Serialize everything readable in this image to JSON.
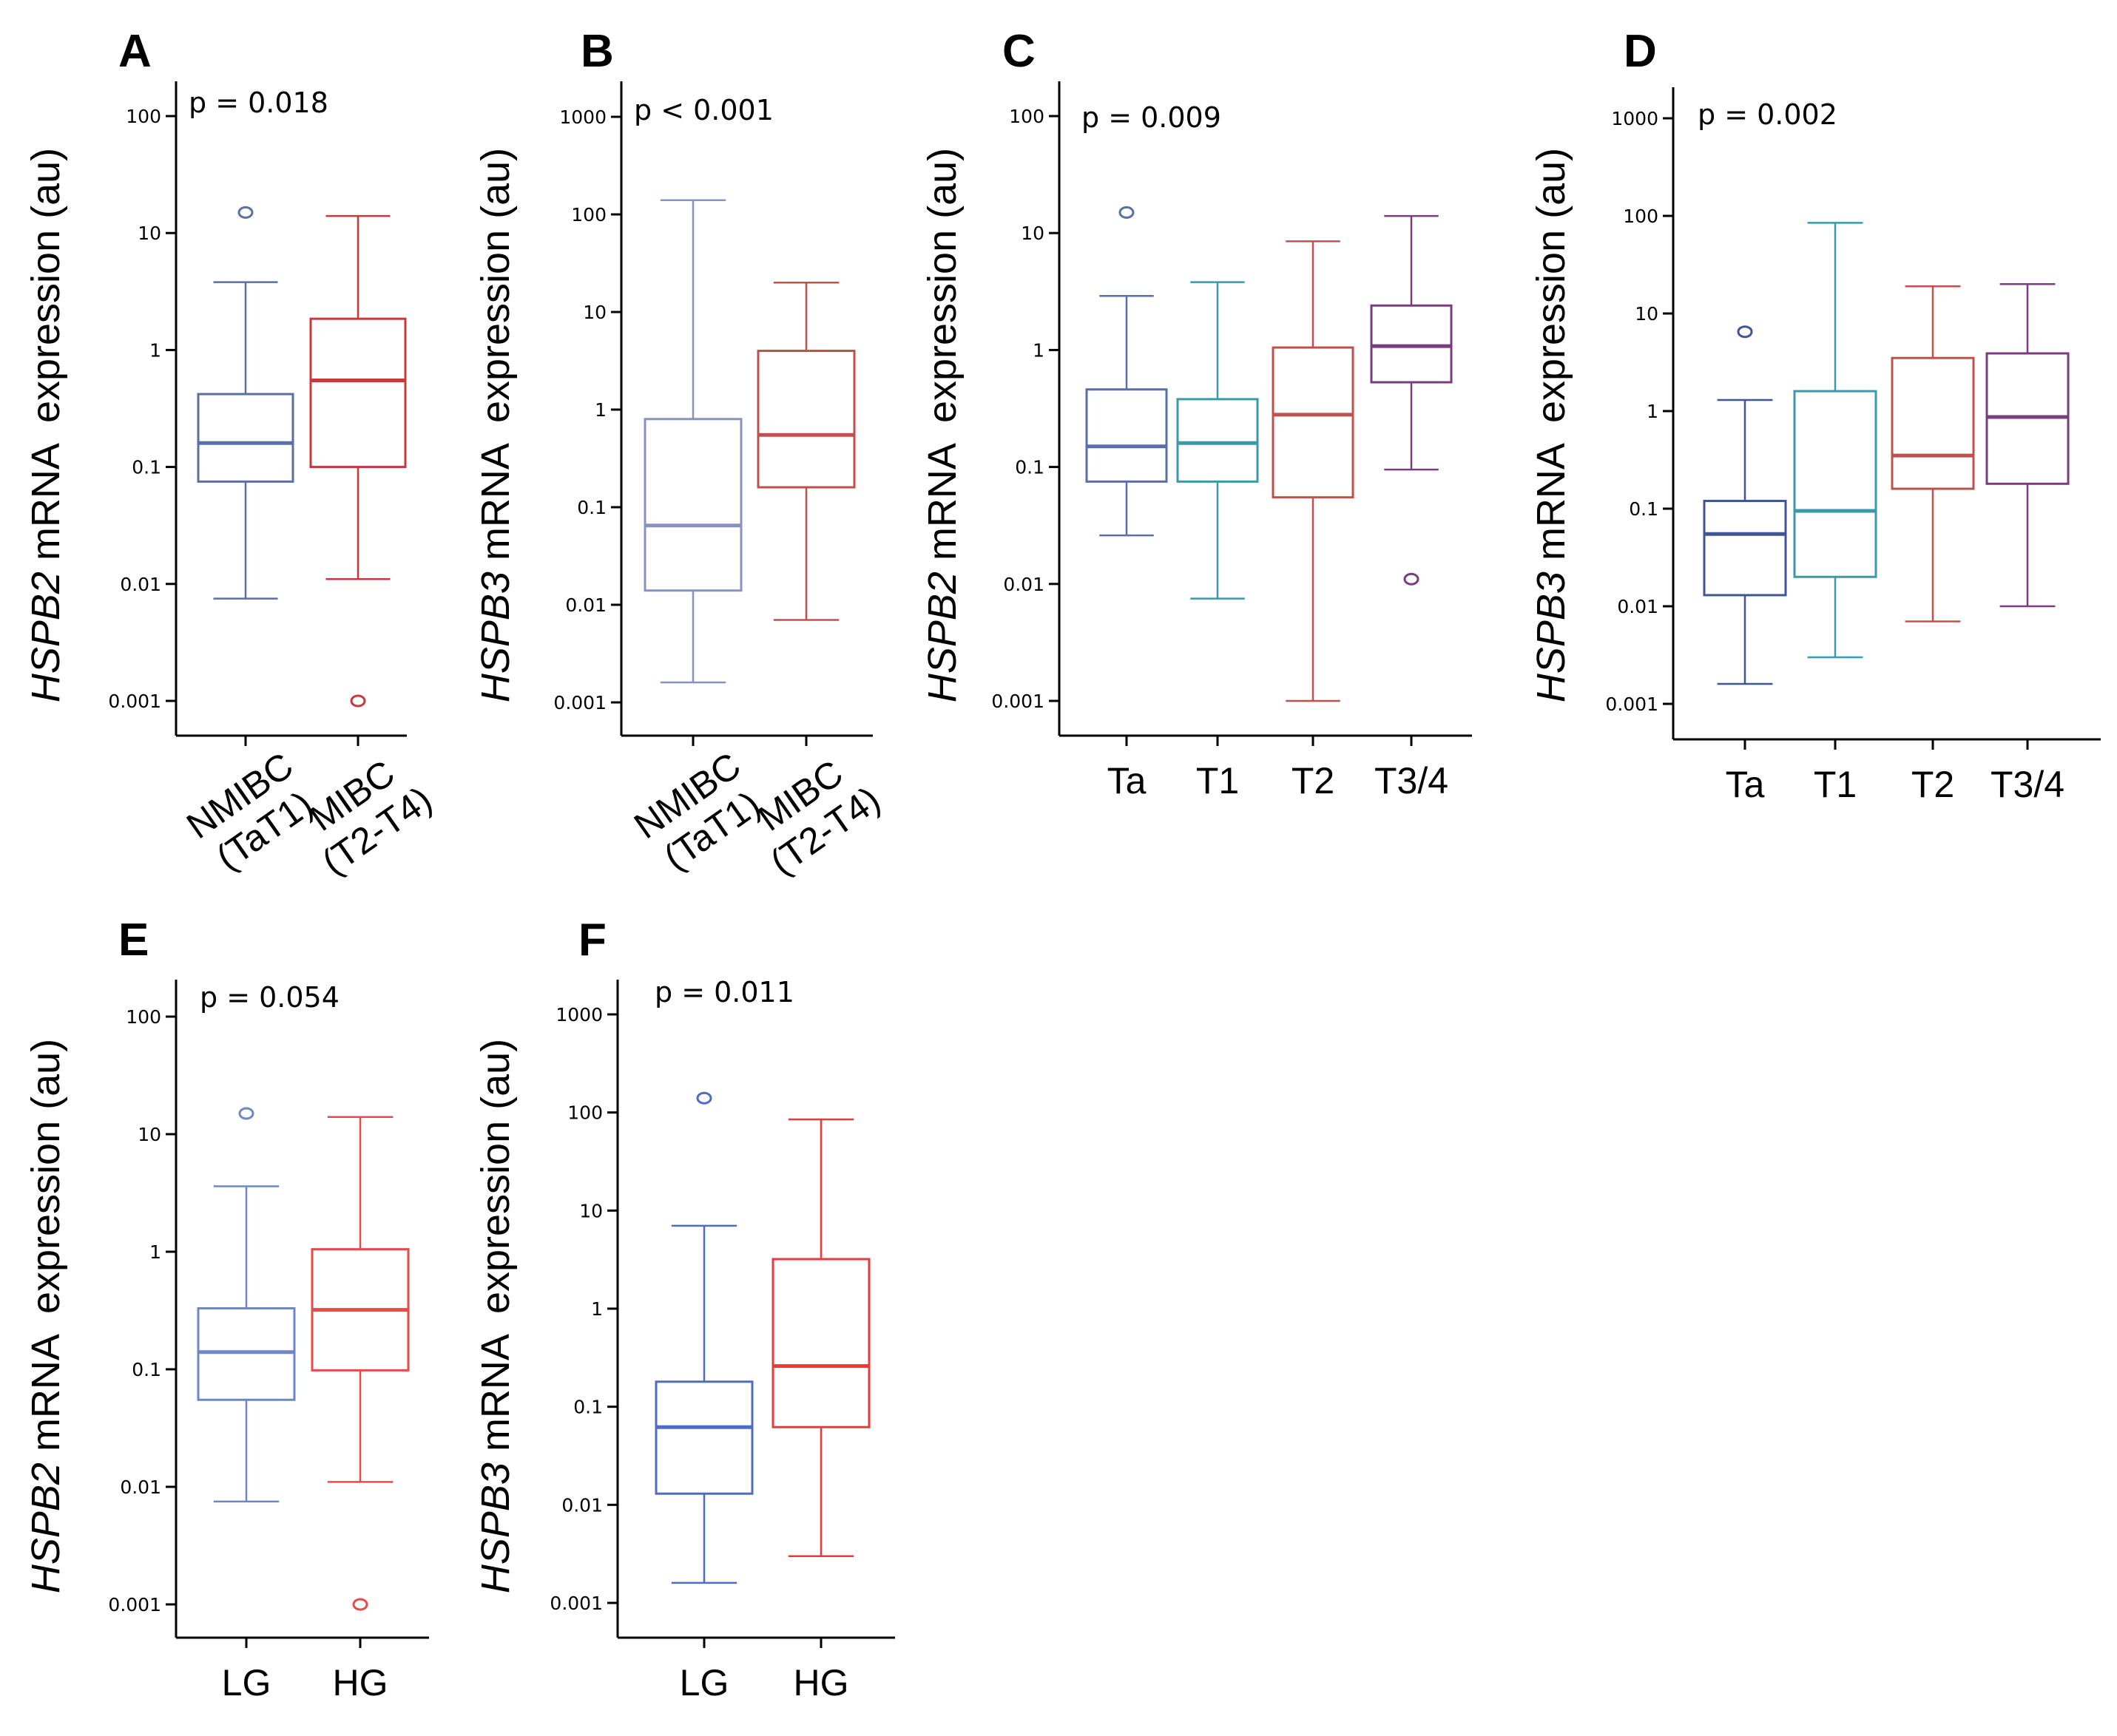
{
  "chart_data": [
    {
      "id": "A",
      "type": "boxplot",
      "panel_label": "A",
      "pvalue": "p = 0.018",
      "ylabel_gene": "HSPB2",
      "ylabel_rest": " mRNA  expression (au)",
      "yscale": "log",
      "ylim": [
        0.0005,
        200
      ],
      "yticks": [
        {
          "v": 0.001,
          "label": "0.001"
        },
        {
          "v": 0.01,
          "label": "0.01"
        },
        {
          "v": 0.1,
          "label": "0.1"
        },
        {
          "v": 1,
          "label": "1"
        },
        {
          "v": 10,
          "label": "10"
        },
        {
          "v": 100,
          "label": "100"
        }
      ],
      "categories": [
        "NMIBC\n(TaT1)",
        "MIBC\n(T2-T4)"
      ],
      "rotated_labels": true,
      "boxes": [
        {
          "name": "NMIBC (TaT1)",
          "whisker_low": 0.0075,
          "q1": 0.075,
          "median": 0.16,
          "q3": 0.42,
          "whisker_high": 3.8,
          "outliers": [
            15
          ],
          "color": "#5a6fa8"
        },
        {
          "name": "MIBC (T2-T4)",
          "whisker_low": 0.011,
          "q1": 0.1,
          "median": 0.55,
          "q3": 1.85,
          "whisker_high": 14,
          "outliers": [
            0.001
          ],
          "color": "#c8383a"
        }
      ]
    },
    {
      "id": "B",
      "type": "boxplot",
      "panel_label": "B",
      "pvalue": "p < 0.001",
      "ylabel_gene": "HSPB3",
      "ylabel_rest": " mRNA  expression (au)",
      "yscale": "log",
      "ylim": [
        0.0006,
        2000
      ],
      "yticks": [
        {
          "v": 0.001,
          "label": "0.001"
        },
        {
          "v": 0.01,
          "label": "0.01"
        },
        {
          "v": 0.1,
          "label": "0.1"
        },
        {
          "v": 1,
          "label": "1"
        },
        {
          "v": 10,
          "label": "10"
        },
        {
          "v": 100,
          "label": "100"
        },
        {
          "v": 1000,
          "label": "1000"
        }
      ],
      "categories": [
        "NMIBC\n(TaT1)",
        "MIBC\n(T2-T4)"
      ],
      "rotated_labels": true,
      "boxes": [
        {
          "name": "NMIBC (TaT1)",
          "whisker_low": 0.0016,
          "q1": 0.014,
          "median": 0.065,
          "q3": 0.8,
          "whisker_high": 140,
          "outliers": [],
          "color": "#8793be"
        },
        {
          "name": "MIBC (T2-T4)",
          "whisker_low": 0.007,
          "q1": 0.16,
          "median": 0.55,
          "q3": 4,
          "whisker_high": 20,
          "outliers": [],
          "color": "#c0504d"
        }
      ]
    },
    {
      "id": "C",
      "type": "boxplot",
      "panel_label": "C",
      "pvalue": "p = 0.009",
      "ylabel_gene": "HSPB2",
      "ylabel_rest": " mRNA  expression (au)",
      "yscale": "log",
      "ylim": [
        0.0005,
        200
      ],
      "yticks": [
        {
          "v": 0.001,
          "label": "0.001"
        },
        {
          "v": 0.01,
          "label": "0.01"
        },
        {
          "v": 0.1,
          "label": "0.1"
        },
        {
          "v": 1,
          "label": "1"
        },
        {
          "v": 10,
          "label": "10"
        },
        {
          "v": 100,
          "label": "100"
        }
      ],
      "categories": [
        "Ta",
        "T1",
        "T2",
        "T3/4"
      ],
      "rotated_labels": false,
      "boxes": [
        {
          "name": "Ta",
          "whisker_low": 0.026,
          "q1": 0.075,
          "median": 0.15,
          "q3": 0.46,
          "whisker_high": 2.9,
          "outliers": [
            15
          ],
          "color": "#5a6fa8"
        },
        {
          "name": "T1",
          "whisker_low": 0.0075,
          "q1": 0.075,
          "median": 0.16,
          "q3": 0.38,
          "whisker_high": 3.8,
          "outliers": [],
          "color": "#3b9aa8"
        },
        {
          "name": "T2",
          "whisker_low": 0.001,
          "q1": 0.055,
          "median": 0.28,
          "q3": 1.05,
          "whisker_high": 8.5,
          "outliers": [],
          "color": "#c0504d"
        },
        {
          "name": "T3/4",
          "whisker_low": 0.095,
          "q1": 0.53,
          "median": 1.08,
          "q3": 2.4,
          "whisker_high": 14,
          "outliers": [
            0.011
          ],
          "color": "#7a3c7c"
        }
      ]
    },
    {
      "id": "D",
      "type": "boxplot",
      "panel_label": "D",
      "pvalue": "p = 0.002",
      "ylabel_gene": "HSPB3",
      "ylabel_rest": " mRNA  expression (au)",
      "yscale": "log",
      "ylim": [
        0.0006,
        2000
      ],
      "yticks": [
        {
          "v": 0.001,
          "label": "0.001"
        },
        {
          "v": 0.01,
          "label": "0.01"
        },
        {
          "v": 0.1,
          "label": "0.1"
        },
        {
          "v": 1,
          "label": "1"
        },
        {
          "v": 10,
          "label": "10"
        },
        {
          "v": 100,
          "label": "100"
        },
        {
          "v": 1000,
          "label": "1000"
        }
      ],
      "categories": [
        "Ta",
        "T1",
        "T2",
        "T3/4"
      ],
      "rotated_labels": false,
      "boxes": [
        {
          "name": "Ta",
          "whisker_low": 0.0016,
          "q1": 0.013,
          "median": 0.055,
          "q3": 0.12,
          "whisker_high": 1.3,
          "outliers": [
            6.5
          ],
          "color": "#3f5594"
        },
        {
          "name": "T1",
          "whisker_low": 0.003,
          "q1": 0.02,
          "median": 0.095,
          "q3": 1.6,
          "whisker_high": 85,
          "outliers": [],
          "color": "#3b9aa8"
        },
        {
          "name": "T2",
          "whisker_low": 0.007,
          "q1": 0.16,
          "median": 0.35,
          "q3": 3.5,
          "whisker_high": 19,
          "outliers": [],
          "color": "#c0504d"
        },
        {
          "name": "T3/4",
          "whisker_low": 0.01,
          "q1": 0.18,
          "median": 0.87,
          "q3": 3.9,
          "whisker_high": 20,
          "outliers": [],
          "color": "#7a3c7c"
        }
      ]
    },
    {
      "id": "E",
      "type": "boxplot",
      "panel_label": "E",
      "pvalue": "p = 0.054",
      "ylabel_gene": "HSPB2",
      "ylabel_rest": " mRNA  expression (au)",
      "yscale": "log",
      "ylim": [
        0.0005,
        200
      ],
      "yticks": [
        {
          "v": 0.001,
          "label": "0.001"
        },
        {
          "v": 0.01,
          "label": "0.01"
        },
        {
          "v": 0.1,
          "label": "0.1"
        },
        {
          "v": 1,
          "label": "1"
        },
        {
          "v": 10,
          "label": "10"
        },
        {
          "v": 100,
          "label": "100"
        }
      ],
      "categories": [
        "LG",
        "HG"
      ],
      "rotated_labels": false,
      "boxes": [
        {
          "name": "LG",
          "whisker_low": 0.0075,
          "q1": 0.055,
          "median": 0.14,
          "q3": 0.33,
          "whisker_high": 3.6,
          "outliers": [
            15
          ],
          "color": "#6f86c7"
        },
        {
          "name": "HG",
          "whisker_low": 0.011,
          "q1": 0.098,
          "median": 0.32,
          "q3": 1.05,
          "whisker_high": 14,
          "outliers": [
            0.001
          ],
          "color": "#e8494b"
        }
      ]
    },
    {
      "id": "F",
      "type": "boxplot",
      "panel_label": "F",
      "pvalue": "p = 0.011",
      "ylabel_gene": "HSPB3",
      "ylabel_rest": " mRNA  expression (au)",
      "yscale": "log",
      "ylim": [
        0.0006,
        2000
      ],
      "yticks": [
        {
          "v": 0.001,
          "label": "0.001"
        },
        {
          "v": 0.01,
          "label": "0.01"
        },
        {
          "v": 0.1,
          "label": "0.1"
        },
        {
          "v": 1,
          "label": "1"
        },
        {
          "v": 10,
          "label": "10"
        },
        {
          "v": 100,
          "label": "100"
        },
        {
          "v": 1000,
          "label": "1000"
        }
      ],
      "categories": [
        "LG",
        "HG"
      ],
      "rotated_labels": false,
      "boxes": [
        {
          "name": "LG",
          "whisker_low": 0.0016,
          "q1": 0.013,
          "median": 0.062,
          "q3": 0.18,
          "whisker_high": 7,
          "outliers": [
            140
          ],
          "color": "#4f6bc2"
        },
        {
          "name": "HG",
          "whisker_low": 0.003,
          "q1": 0.062,
          "median": 0.26,
          "q3": 3.2,
          "whisker_high": 85,
          "outliers": [],
          "color": "#e8393b"
        }
      ]
    }
  ]
}
